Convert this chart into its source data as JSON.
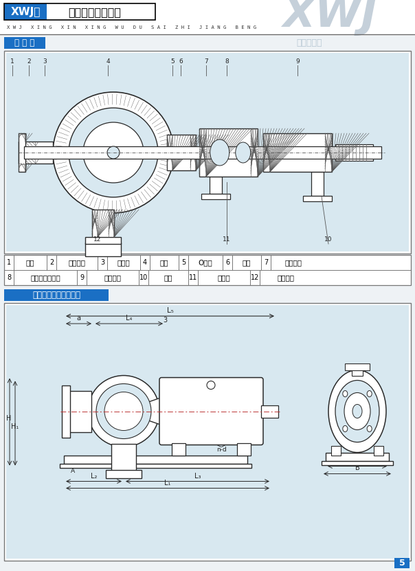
{
  "title_xwj": "XWJ型",
  "title_main": "新型无堵塞纸浆泵",
  "subtitle": "X W J   X I N G   X I N   X I N G   W U   D U   S A I   Z H I   J I A N G   B E N G",
  "watermark": "XWJ",
  "section1": "结 构 图",
  "section2": "机组外形及安装尺寸图",
  "page_num": "5",
  "bg_color": "#eef2f5",
  "blue_bg": "#1a6fc4",
  "table_row1": [
    "1",
    "泵体",
    "2",
    "调节联杆",
    "3",
    "耐磨板",
    "4",
    "叶轮",
    "5",
    "O形圈",
    "6",
    "泵盖",
    "7",
    "软管接头"
  ],
  "table_row2": [
    "8",
    "填料或机械密封",
    "9",
    "悬架部件",
    "10",
    "支架",
    "11",
    "挡水圈",
    "12",
    "叶轮螺母"
  ],
  "diag_bg": "#d8e8f0",
  "line_color": "#2a2a2a",
  "hatch_color": "#555555",
  "dim_color": "#222222"
}
